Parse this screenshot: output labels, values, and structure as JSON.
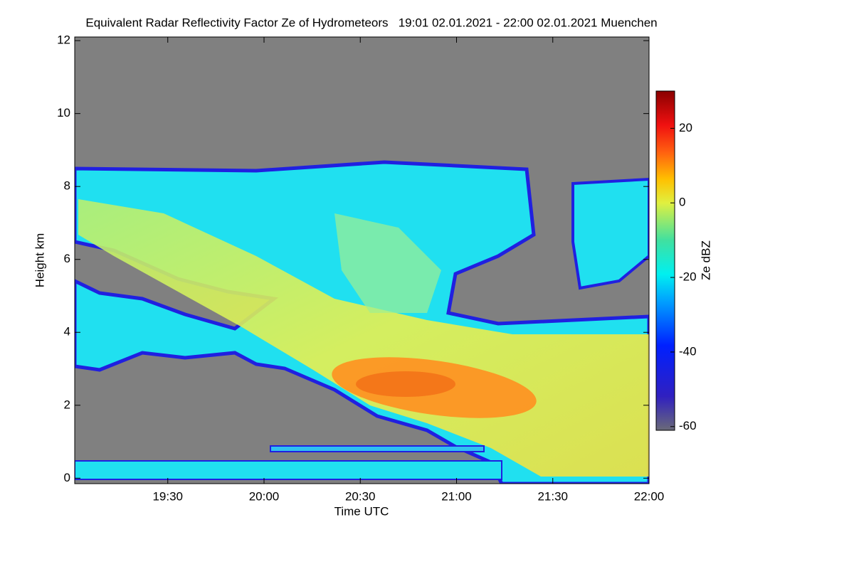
{
  "chart_data": {
    "type": "heatmap",
    "title": "Equivalent Radar Reflectivity Factor Ze of Hydrometeors   19:01 02.01.2021 - 22:00 02.01.2021 Muenchen",
    "x_label": "Time UTC",
    "y_label": "Height km",
    "xlim": [
      "19:01",
      "22:00"
    ],
    "xticks": [
      "19:30",
      "20:00",
      "20:30",
      "21:00",
      "21:30",
      "22:00"
    ],
    "ylim": [
      -0.15,
      12.1
    ],
    "yticks": [
      0,
      2,
      4,
      6,
      8,
      10,
      12
    ],
    "colorbar": {
      "label": "Ze dBZ",
      "lim": [
        -61,
        30
      ],
      "ticks": [
        -60,
        -40,
        -20,
        0,
        20
      ]
    }
  }
}
